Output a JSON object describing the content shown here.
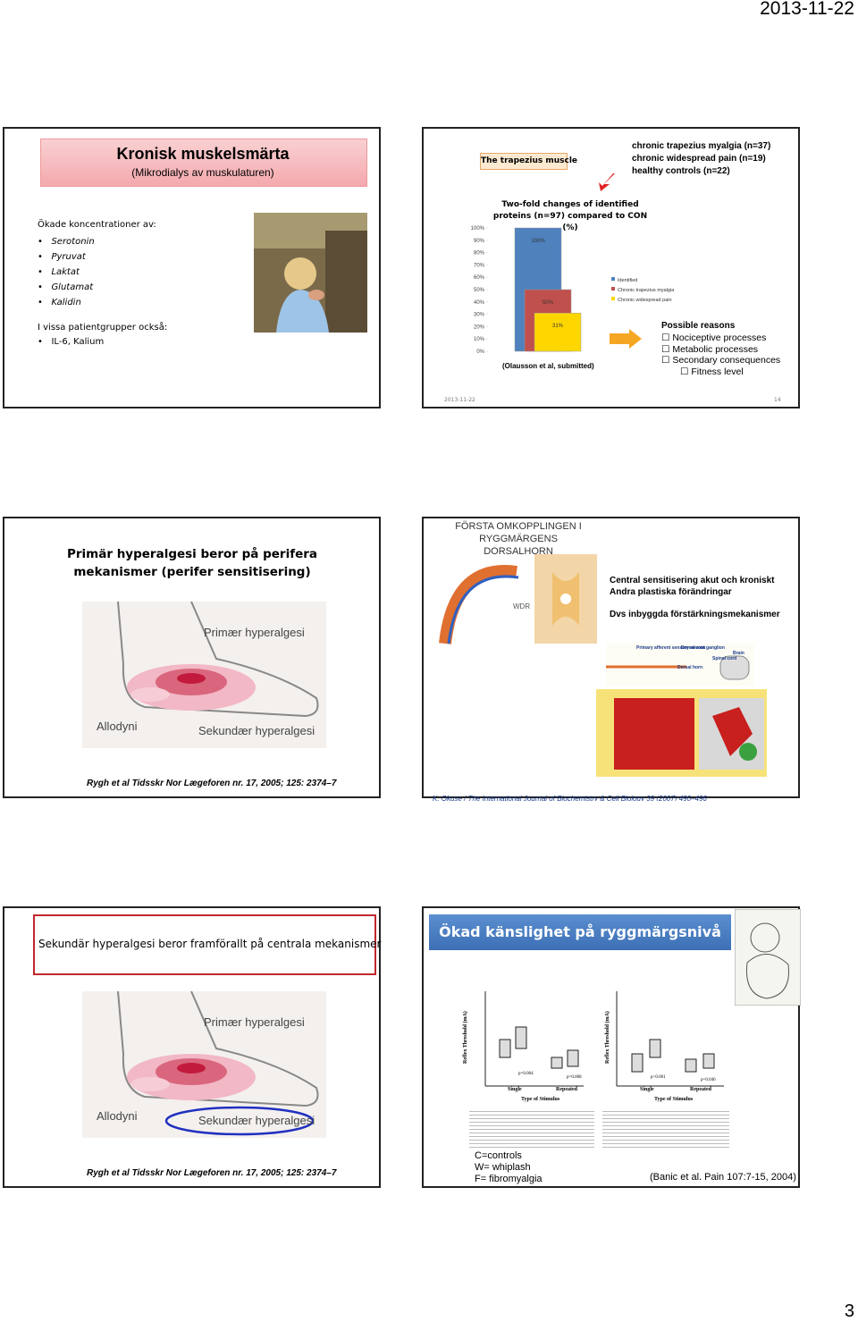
{
  "header_date": "2013-11-22",
  "page_number": "3",
  "slides": [
    {
      "title": "Kronisk muskelsmärta",
      "subtitle": "(Mikrodialys av muskulaturen)",
      "intro": "Ökade koncentrationer av:",
      "items": [
        "Serotonin",
        "Pyruvat",
        "Laktat",
        "Glutamat",
        "Kalidin"
      ],
      "intro2": "I vissa patientgrupper också:",
      "items2": [
        "IL-6, Kalium"
      ]
    },
    {
      "label": "The trapezius muscle",
      "groups": [
        "chronic trapezius myalgia (n=37)",
        "chronic widespread pain (n=19)",
        "healthy controls (n=22)"
      ],
      "chart": {
        "type": "bar",
        "title": "Two-fold changes of identified proteins (n=97) compared to CON (%)",
        "ylim": [
          0,
          100
        ],
        "yticks": [
          {
            "value": 0,
            "label": "0%"
          },
          {
            "value": 10,
            "label": "10%"
          },
          {
            "value": 20,
            "label": "20%"
          },
          {
            "value": 30,
            "label": "30%"
          },
          {
            "value": 40,
            "label": "40%"
          },
          {
            "value": 50,
            "label": "50%"
          },
          {
            "value": 60,
            "label": "60%"
          },
          {
            "value": 70,
            "label": "70%"
          },
          {
            "value": 80,
            "label": "80%"
          },
          {
            "value": 90,
            "label": "90%"
          },
          {
            "value": 100,
            "label": "100%"
          }
        ],
        "series": [
          {
            "name": "Identified",
            "color": "#4f81bd",
            "values": [
              100
            ],
            "value_labels": [
              "100%"
            ]
          },
          {
            "name": "Chronic trapezius myalgia",
            "color": "#c0504d",
            "values": [
              50
            ],
            "value_labels": [
              "50%"
            ]
          },
          {
            "name": "Chronic widespread pain",
            "color": "#ffd700",
            "values": [
              31
            ],
            "value_labels": [
              "31%"
            ]
          }
        ]
      },
      "source": "(Olausson et al, submitted)",
      "reasons_title": "Possible reasons",
      "reasons": [
        "Nociceptive processes",
        "Metabolic processes",
        "Secondary consequences"
      ],
      "sub_reason": "Fitness level",
      "footer_date": "2013-11-22",
      "footer_page": "14"
    },
    {
      "title": "Primär hyperalgesi beror på perifera mekanismer (perifer sensitisering)",
      "figure_labels": [
        "Primær hyperalgesi",
        "Allodyni",
        "Sekundær hyperalgesi"
      ],
      "citation": "Rygh et al Tidsskr Nor Lægeforen nr. 17, 2005; 125: 2374–7"
    },
    {
      "figure_title": "FÖRSTA OMKOPPLINGEN I RYGGMÄRGENS DORSALHORN",
      "figure_label": "WDR",
      "lines": [
        "Central sensitisering akut och kroniskt",
        "Andra plastiska förändringar"
      ],
      "emphasis": "Dvs inbyggda förstärkningsmekanismer",
      "diagram_labels": [
        "Primary afferent sensory neuron",
        "Dorsal root ganglion",
        "Brain",
        "Spinal cord",
        "Dorsal horn"
      ],
      "citation": "K. Okuse / The International Journal of Biochemistry & Cell Biology 39 (2007) 490–496"
    },
    {
      "title": "Sekundär hyperalgesi beror framförallt på centrala mekanismer",
      "figure_labels": [
        "Primær hyperalgesi",
        "Allodyni",
        "Sekundær hyperalgesi"
      ],
      "citation": "Rygh et al Tidsskr Nor Lægeforen nr. 17, 2005; 125: 2374–7"
    },
    {
      "title": "Ökad känslighet på ryggmärgsnivå",
      "plot_labels": [
        "Reflex Threshold (mA)",
        "Type of Stimulus",
        "Single",
        "Repeated",
        "p=0.004",
        "p=0.008",
        "Reflex Threshold (mA)",
        "Type of Stimulus",
        "Single",
        "Repeated",
        "p<0.001",
        "p=0.046"
      ],
      "legend": [
        "C=controls",
        "W= whiplash",
        "F= fibromyalgia"
      ],
      "citation": "(Banic et al. Pain 107:7-15, 2004)"
    }
  ]
}
